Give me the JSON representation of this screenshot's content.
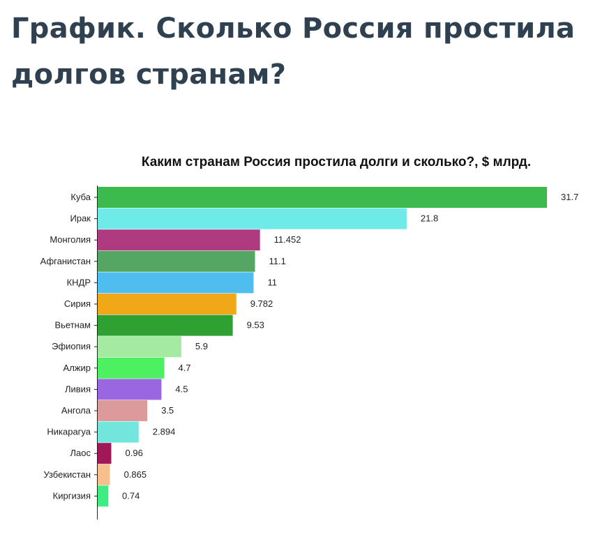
{
  "page": {
    "title": "График. Сколько Россия простила долгов странам?"
  },
  "chart_data": {
    "type": "bar",
    "orientation": "horizontal",
    "title": "Каким странам Россия простила долги и сколько?, $ млрд.",
    "categories": [
      "Куба",
      "Ирак",
      "Монголия",
      "Афганистан",
      "КНДР",
      "Сирия",
      "Вьетнам",
      "Эфиопия",
      "Алжир",
      "Ливия",
      "Ангола",
      "Никарагуа",
      "Лаос",
      "Узбекистан",
      "Киргизия"
    ],
    "values": [
      31.7,
      21.8,
      11.452,
      11.1,
      11,
      9.782,
      9.53,
      5.9,
      4.7,
      4.5,
      3.5,
      2.894,
      0.96,
      0.865,
      0.74
    ],
    "value_labels": [
      "31.7",
      "21.8",
      "11.452",
      "11.1",
      "11",
      "9.782",
      "9.53",
      "5.9",
      "4.7",
      "4.5",
      "3.5",
      "2.894",
      "0.96",
      "0.865",
      "0.74"
    ],
    "colors": [
      "#3dba4e",
      "#6eeae8",
      "#b03a80",
      "#55a663",
      "#4fbdf0",
      "#f0a818",
      "#2fa032",
      "#a4eaa0",
      "#4cf060",
      "#9b67e0",
      "#dd9a9a",
      "#72e6dd",
      "#a01858",
      "#f7bf8c",
      "#40ec82"
    ],
    "xlim": [
      0,
      31.7
    ],
    "grid": false,
    "legend": "none"
  }
}
